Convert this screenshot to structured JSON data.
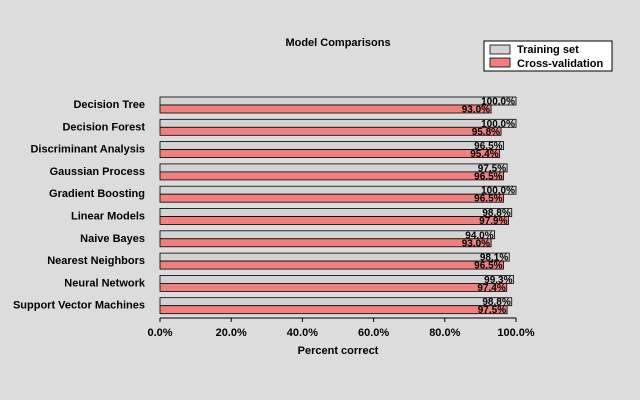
{
  "chart_data": {
    "type": "bar",
    "orientation": "horizontal",
    "title": "Model Comparisons",
    "xlabel": "Percent correct",
    "ylabel": "",
    "xlim": [
      0,
      100
    ],
    "x_ticks": [
      "0.0%",
      "20.0%",
      "40.0%",
      "60.0%",
      "80.0%",
      "100.0%"
    ],
    "legend_position": "top-right",
    "categories": [
      "Decision Tree",
      "Decision Forest",
      "Discriminant Analysis",
      "Gaussian Process",
      "Gradient Boosting",
      "Linear Models",
      "Naive Bayes",
      "Nearest Neighbors",
      "Neural Network",
      "Support Vector Machines"
    ],
    "series": [
      {
        "name": "Training set",
        "color": "#d3d3d3",
        "values": [
          100.0,
          100.0,
          96.5,
          97.5,
          100.0,
          98.8,
          94.0,
          98.1,
          99.3,
          98.8
        ],
        "labels": [
          "100.0%",
          "100.0%",
          "96.5%",
          "97.5%",
          "100.0%",
          "98.8%",
          "94.0%",
          "98.1%",
          "99.3%",
          "98.8%"
        ]
      },
      {
        "name": "Cross-validation",
        "color": "#f08080",
        "values": [
          93.0,
          95.8,
          95.4,
          96.5,
          96.5,
          97.9,
          93.0,
          96.5,
          97.4,
          97.5
        ],
        "labels": [
          "93.0%",
          "95.8%",
          "95.4%",
          "96.5%",
          "96.5%",
          "97.9%",
          "93.0%",
          "96.5%",
          "97.4%",
          "97.5%"
        ]
      }
    ],
    "grid": false
  }
}
